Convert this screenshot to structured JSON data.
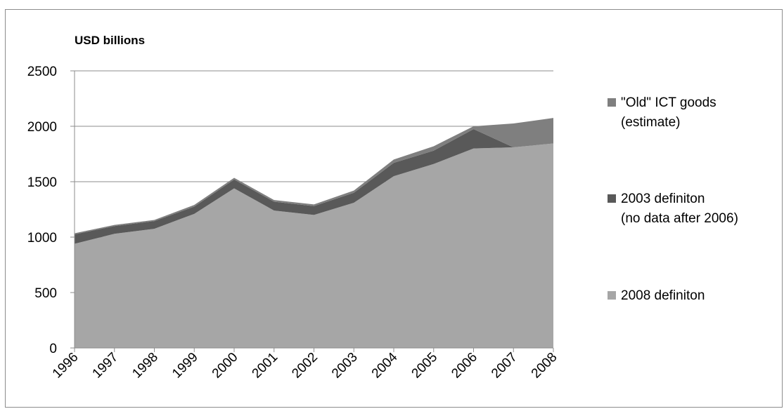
{
  "chart_data": {
    "type": "area",
    "stacked": true,
    "ylabel": "USD billions",
    "ylim": [
      0,
      2500
    ],
    "yticks": [
      0,
      500,
      1000,
      1500,
      2000,
      2500
    ],
    "grid": true,
    "legend_position": "right",
    "categories": [
      "1996",
      "1997",
      "1998",
      "1999",
      "2000",
      "2001",
      "2002",
      "2003",
      "2004",
      "2005",
      "2006",
      "2007",
      "2008"
    ],
    "series": [
      {
        "name": "2008 definiton",
        "color": "#a6a6a6",
        "values": [
          940,
          1030,
          1075,
          1210,
          1440,
          1240,
          1200,
          1310,
          1550,
          1660,
          1800,
          1810,
          1845
        ]
      },
      {
        "name": "2003 definiton\n(no data after 2006)",
        "color": "#595959",
        "values": [
          85,
          70,
          70,
          65,
          80,
          80,
          80,
          90,
          120,
          120,
          175,
          0,
          0
        ]
      },
      {
        "name": "\"Old\" ICT goods\n(estimate)",
        "color": "#7f7f7f",
        "values": [
          10,
          10,
          10,
          15,
          15,
          15,
          15,
          20,
          30,
          40,
          25,
          215,
          230
        ]
      }
    ],
    "legend_order": [
      2,
      1,
      0
    ]
  }
}
